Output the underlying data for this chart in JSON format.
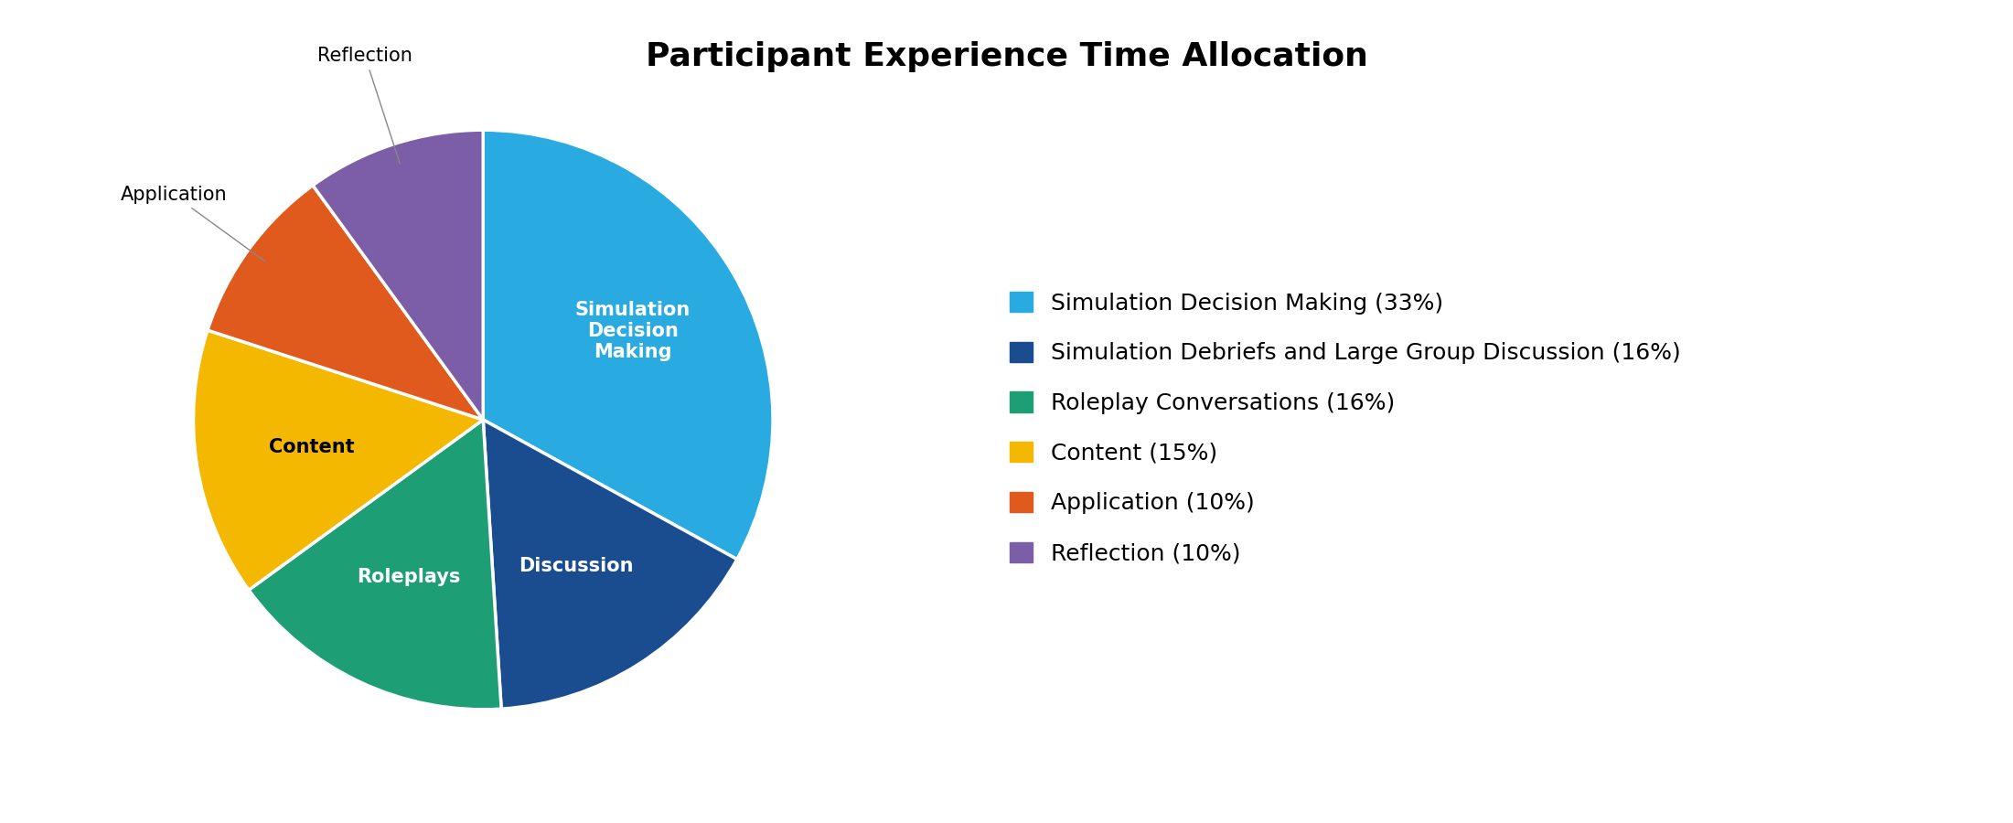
{
  "title": "Participant Experience Time Allocation",
  "slices": [
    {
      "label": "Simulation\nDecision\nMaking",
      "legend_label": "Simulation Decision Making (33%)",
      "value": 33,
      "color": "#29ABE2",
      "text_color": "white"
    },
    {
      "label": "Discussion",
      "legend_label": "Simulation Debriefs and Large Group Discussion (16%)",
      "value": 16,
      "color": "#1A4D8F",
      "text_color": "white"
    },
    {
      "label": "Roleplays",
      "legend_label": "Roleplay Conversations (16%)",
      "value": 16,
      "color": "#1D9E74",
      "text_color": "white"
    },
    {
      "label": "Content",
      "legend_label": "Content (15%)",
      "value": 15,
      "color": "#F5B800",
      "text_color": "black"
    },
    {
      "label": "Application",
      "legend_label": "Application (10%)",
      "value": 10,
      "color": "#E05A1E",
      "text_color": "white"
    },
    {
      "label": "Reflection",
      "legend_label": "Reflection (10%)",
      "value": 10,
      "color": "#7B5EA7",
      "text_color": "white"
    }
  ],
  "title_fontsize": 26,
  "legend_fontsize": 18,
  "slice_label_fontsize": 15,
  "background_color": "#ffffff",
  "startangle": 90,
  "outside_labels": [
    "Application",
    "Reflection"
  ],
  "wedge_edge_color": "white",
  "wedge_linewidth": 2.5
}
